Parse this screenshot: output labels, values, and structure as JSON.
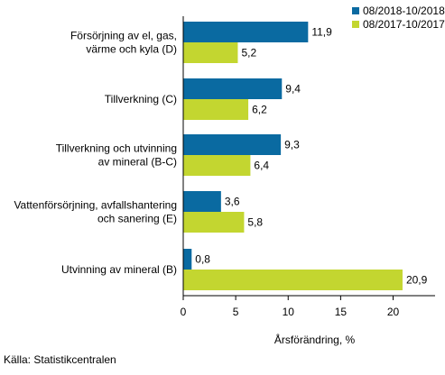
{
  "chart_data": {
    "type": "bar",
    "orientation": "horizontal",
    "categories": [
      [
        "Försörjning av el, gas,",
        "värme och kyla (D)"
      ],
      [
        "Tillverkning (C)"
      ],
      [
        "Tillverkning och utvinning",
        "av mineral (B-C)"
      ],
      [
        "Vattenförsörjning, avfallshantering",
        "och sanering (E)"
      ],
      [
        "Utvinning av mineral (B)"
      ]
    ],
    "series": [
      {
        "name": "08/2018-10/2018",
        "color": "#0a6aa1",
        "values": [
          11.9,
          9.4,
          9.3,
          3.6,
          0.8
        ],
        "labels": [
          "11,9",
          "9,4",
          "9,3",
          "3,6",
          "0,8"
        ]
      },
      {
        "name": "08/2017-10/2017",
        "color": "#c3d630",
        "values": [
          5.2,
          6.2,
          6.4,
          5.8,
          20.9
        ],
        "labels": [
          "5,2",
          "6,2",
          "6,4",
          "5,8",
          "20,9"
        ]
      }
    ],
    "xlabel": "Årsförändring, %",
    "xlim": [
      0,
      24
    ],
    "xticks": [
      0,
      5,
      10,
      15,
      20
    ],
    "grid": false,
    "legend_position": "top-right"
  },
  "source": "Källa: Statistikcentralen"
}
